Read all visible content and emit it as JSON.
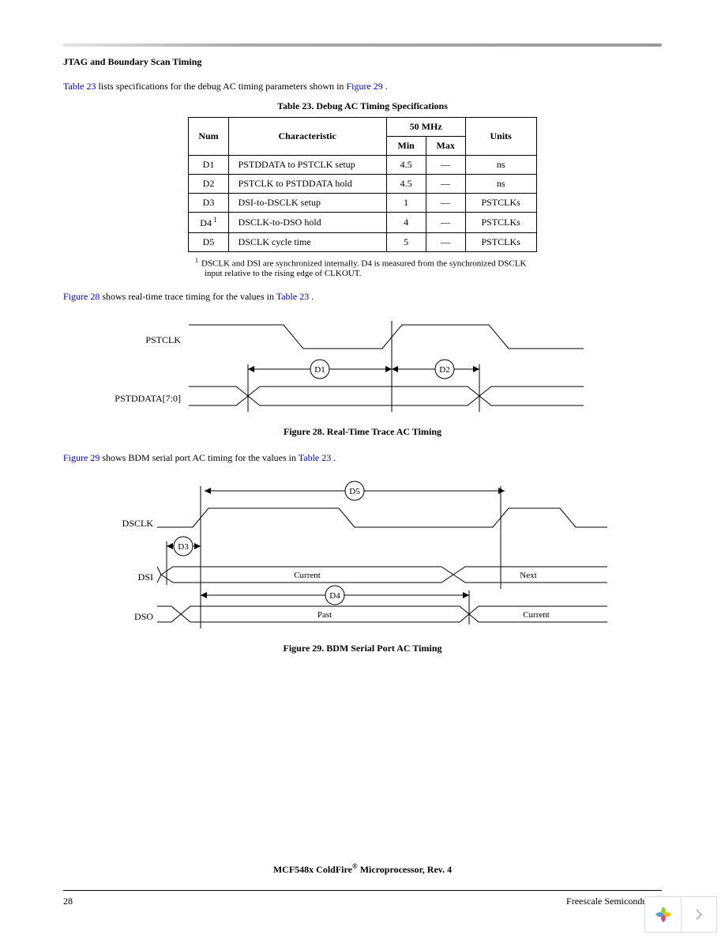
{
  "header": {
    "section_title": "JTAG and Boundary Scan Timing"
  },
  "para1": {
    "ref1": "Table 23",
    "mid": " lists specifications for the debug AC timing parameters shown in ",
    "ref2": "Figure 29",
    "end": "."
  },
  "table": {
    "title": "Table 23. Debug AC Timing Specifications",
    "head": {
      "num": "Num",
      "char": "Characteristic",
      "freq": "50 MHz",
      "min": "Min",
      "max": "Max",
      "units": "Units"
    },
    "rows": [
      {
        "num": "D1",
        "char": "PSTDDATA to PSTCLK setup",
        "min": "4.5",
        "max": "—",
        "units": "ns",
        "note": ""
      },
      {
        "num": "D2",
        "char": "PSTCLK to PSTDDATA hold",
        "min": "4.5",
        "max": "—",
        "units": "ns",
        "note": ""
      },
      {
        "num": "D3",
        "char": "DSI-to-DSCLK setup",
        "min": "1",
        "max": "—",
        "units": "PSTCLKs",
        "note": ""
      },
      {
        "num": "D4",
        "char": "DSCLK-to-DSO hold",
        "min": "4",
        "max": "—",
        "units": "PSTCLKs",
        "note": "1"
      },
      {
        "num": "D5",
        "char": "DSCLK cycle time",
        "min": "5",
        "max": "—",
        "units": "PSTCLKs",
        "note": ""
      }
    ],
    "footnote": {
      "sup": "1",
      "text": "DSCLK and DSI are synchronized internally. D4 is measured from the synchronized DSCLK input relative to the rising edge of CLKOUT."
    }
  },
  "para2": {
    "ref1": "Figure 28",
    "mid": " shows real-time trace timing for the values in ",
    "ref2": "Table 23",
    "end": "."
  },
  "fig28": {
    "sig1": "PSTCLK",
    "sig2": "PSTDDATA[7:0]",
    "d1": "D1",
    "d2": "D2",
    "caption": "Figure 28. Real-Time Trace AC Timing"
  },
  "para3": {
    "ref1": "Figure 29",
    "mid": " shows BDM serial port AC timing for the values in ",
    "ref2": "Table 23",
    "end": "."
  },
  "fig29": {
    "sig1": "DSCLK",
    "sig2": "DSI",
    "sig3": "DSO",
    "d3": "D3",
    "d4": "D4",
    "d5": "D5",
    "txt_current": "Current",
    "txt_next": "Next",
    "txt_past": "Past",
    "caption": "Figure 29. BDM Serial Port AC Timing"
  },
  "footer": {
    "title_a": "MCF548x ColdFire",
    "title_sup": "®",
    "title_b": " Microprocessor, Rev. 4",
    "page": "28",
    "vendor": "Freescale Semiconductor"
  }
}
